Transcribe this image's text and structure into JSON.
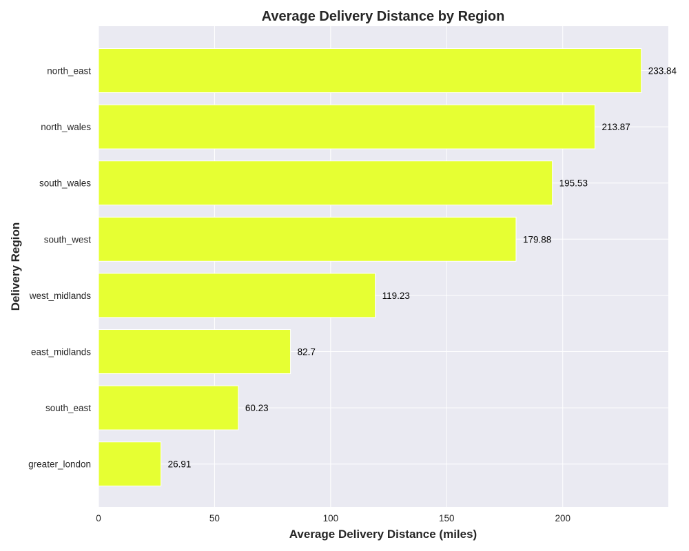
{
  "chart_data": {
    "type": "bar",
    "orientation": "horizontal",
    "title": "Average Delivery Distance by Region",
    "xlabel": "Average Delivery Distance (miles)",
    "ylabel": "Delivery Region",
    "categories": [
      "north_east",
      "north_wales",
      "south_wales",
      "south_west",
      "west_midlands",
      "east_midlands",
      "south_east",
      "greater_london"
    ],
    "values": [
      233.84,
      213.87,
      195.53,
      179.88,
      119.23,
      82.7,
      60.23,
      26.91
    ],
    "data_labels": [
      "233.84",
      "213.87",
      "195.53",
      "179.88",
      "119.23",
      "82.7",
      "60.23",
      "26.91"
    ],
    "xlim": [
      0,
      245.5
    ],
    "xticks": [
      0,
      50,
      100,
      150,
      200
    ],
    "grid": true,
    "colors": {
      "bar": "#e6ff33",
      "bar_edge": "#ffffff",
      "plot_background": "#eaeaf2",
      "grid": "#ffffff"
    }
  }
}
